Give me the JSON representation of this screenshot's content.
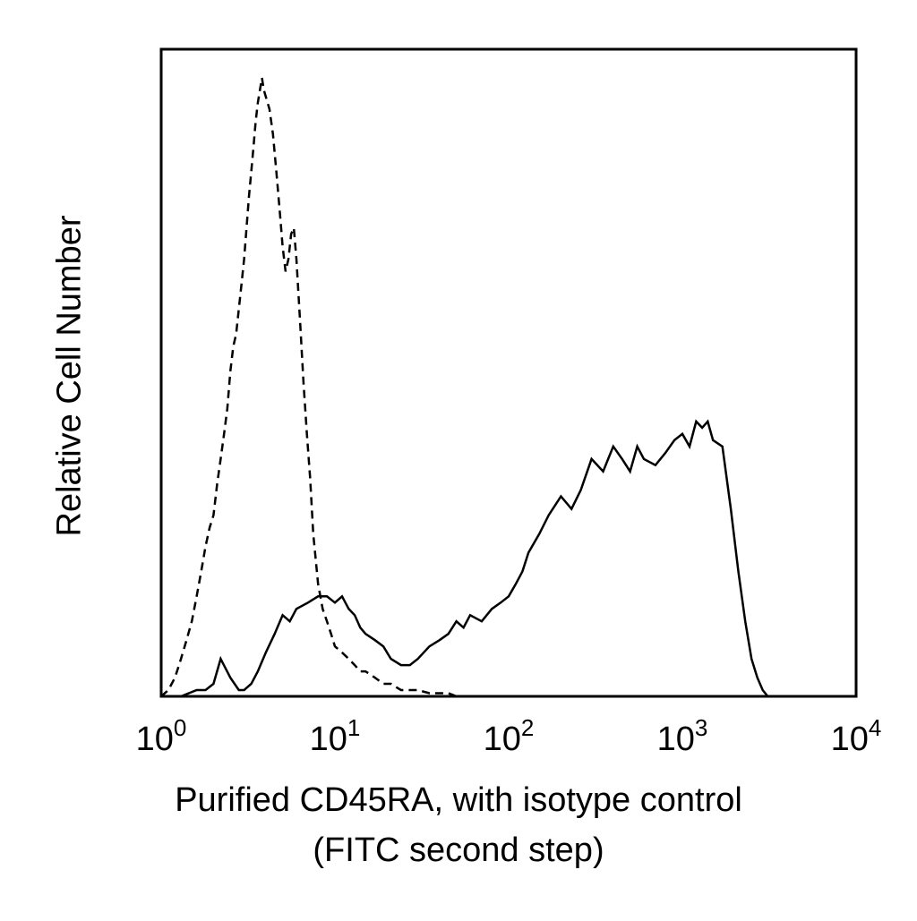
{
  "chart_data": {
    "type": "line",
    "x_scale": "log",
    "xlim": [
      1,
      10000
    ],
    "ylim": [
      0,
      100
    ],
    "grid": false,
    "xlabel_line1": "Purified CD45RA, with isotype control",
    "xlabel_line2": "(FITC second step)",
    "ylabel": "Relative Cell Number",
    "x_ticks": [
      {
        "base": "10",
        "exp": "0",
        "value": 1
      },
      {
        "base": "10",
        "exp": "1",
        "value": 10
      },
      {
        "base": "10",
        "exp": "2",
        "value": 100
      },
      {
        "base": "10",
        "exp": "3",
        "value": 1000
      },
      {
        "base": "10",
        "exp": "4",
        "value": 10000
      }
    ],
    "series": [
      {
        "line_style": "dashed",
        "x": [
          1.0,
          1.1,
          1.2,
          1.3,
          1.4,
          1.5,
          1.6,
          1.7,
          1.8,
          1.9,
          2.0,
          2.1,
          2.2,
          2.3,
          2.4,
          2.5,
          2.6,
          2.7,
          2.8,
          2.9,
          3.0,
          3.1,
          3.2,
          3.3,
          3.4,
          3.5,
          3.6,
          3.7,
          3.8,
          3.9,
          4.0,
          4.2,
          4.4,
          4.6,
          4.8,
          5.0,
          5.2,
          5.4,
          5.6,
          5.8,
          6.0,
          6.3,
          6.6,
          6.9,
          7.2,
          7.5,
          8.0,
          8.5,
          9.0,
          9.5,
          10,
          11,
          12,
          13,
          14,
          15,
          17,
          19,
          21,
          24,
          27,
          30,
          35,
          40,
          45,
          50
        ],
        "values": [
          0,
          1,
          3,
          6,
          9,
          12,
          16,
          20,
          24,
          27,
          29,
          34,
          38,
          42,
          46,
          52,
          56,
          58,
          62,
          66,
          70,
          75,
          80,
          84,
          88,
          92,
          95,
          97,
          99,
          97,
          96,
          94,
          90,
          84,
          78,
          72,
          68,
          70,
          74,
          75,
          70,
          60,
          50,
          42,
          35,
          26,
          18,
          14,
          12,
          10,
          8,
          7,
          6,
          5,
          4,
          4,
          3,
          2,
          2,
          1,
          1,
          1,
          0.5,
          0.5,
          0.5,
          0
        ]
      },
      {
        "line_style": "solid",
        "x": [
          1.0,
          1.3,
          1.6,
          1.8,
          2.0,
          2.2,
          2.5,
          2.8,
          3.0,
          3.3,
          3.6,
          4.0,
          4.5,
          5.0,
          5.5,
          6.0,
          7.0,
          8.0,
          9.0,
          10,
          11,
          12,
          13,
          14,
          15,
          17,
          19,
          21,
          24,
          27,
          30,
          35,
          40,
          45,
          50,
          55,
          60,
          70,
          80,
          90,
          100,
          110,
          120,
          130,
          150,
          170,
          200,
          230,
          260,
          300,
          350,
          400,
          450,
          500,
          550,
          600,
          700,
          800,
          900,
          1000,
          1100,
          1200,
          1300,
          1400,
          1500,
          1700,
          1900,
          2100,
          2300,
          2500,
          2700,
          2900,
          3100
        ],
        "values": [
          0,
          0,
          1,
          1,
          2,
          6,
          3,
          1,
          1,
          2,
          4,
          7,
          10,
          13,
          12,
          14,
          15,
          16,
          16,
          15,
          16,
          14,
          13,
          11,
          10,
          9,
          8,
          6,
          5,
          5,
          6,
          8,
          9,
          10,
          12,
          11,
          13,
          12,
          14,
          15,
          16,
          18,
          20,
          23,
          26,
          29,
          32,
          30,
          33,
          38,
          36,
          40,
          38,
          36,
          40,
          38,
          37,
          39,
          41,
          42,
          40,
          44,
          43,
          44,
          41,
          40,
          30,
          20,
          12,
          6,
          3,
          1,
          0
        ]
      }
    ]
  }
}
